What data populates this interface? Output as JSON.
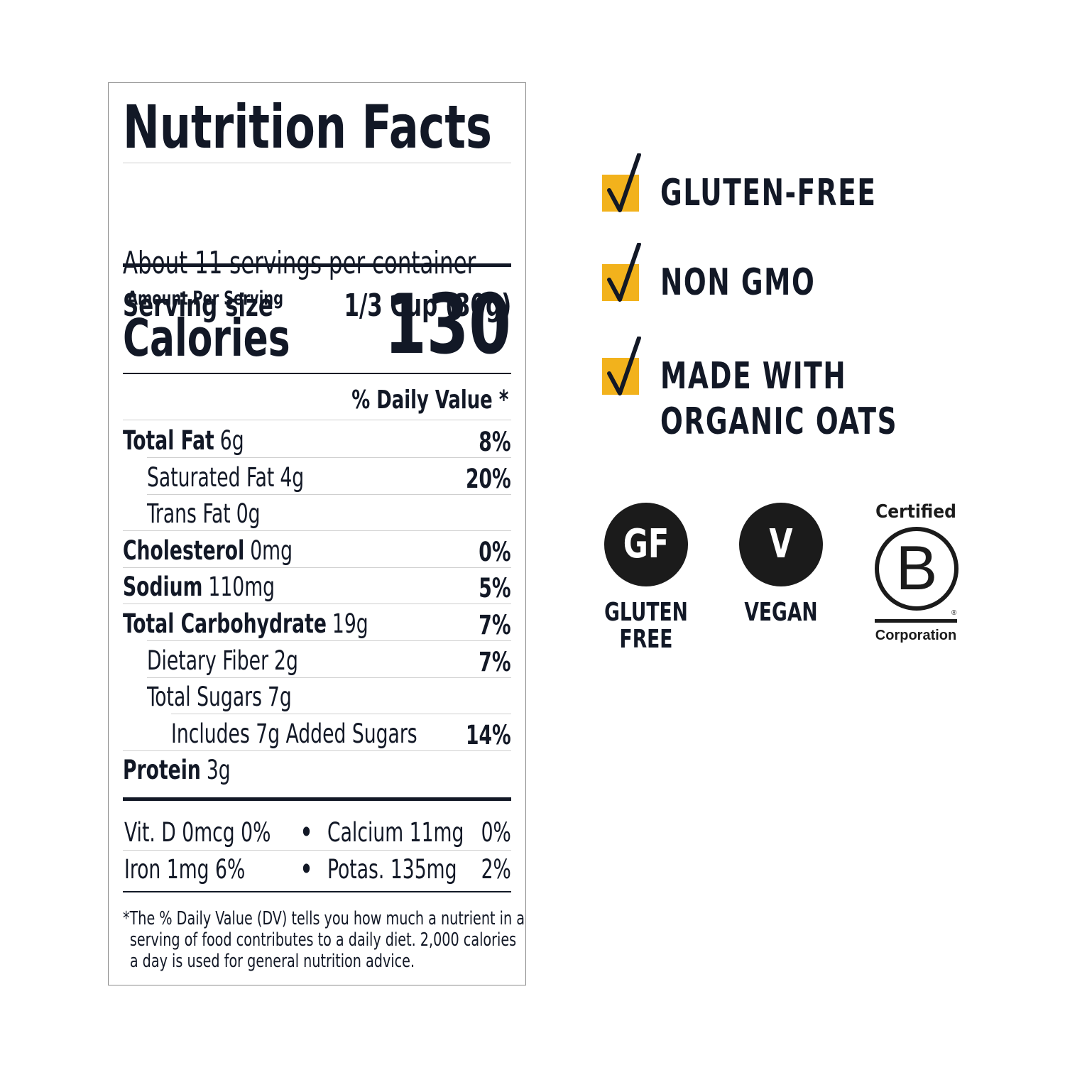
{
  "nutrition": {
    "title": "Nutrition Facts",
    "servings_per_container": "About 11 servings per container",
    "serving_size_label": "Serving size",
    "serving_size_value": "1/3 Cup (30g)",
    "amount_per_serving": "Amount Per Serving",
    "calories_label": "Calories",
    "calories_value": "130",
    "daily_value_header": "% Daily Value *",
    "rows": [
      {
        "label": "Total Fat",
        "amount": "6g",
        "dv": "8%"
      },
      {
        "label": "Saturated Fat",
        "amount": "4g",
        "dv": "20%"
      },
      {
        "label": "Trans Fat",
        "amount": "0g",
        "dv": ""
      },
      {
        "label": "Cholesterol",
        "amount": "0mg",
        "dv": "0%"
      },
      {
        "label": "Sodium",
        "amount": "110mg",
        "dv": "5%"
      },
      {
        "label": "Total Carbohydrate",
        "amount": "19g",
        "dv": "7%"
      },
      {
        "label": "Dietary Fiber",
        "amount": "2g",
        "dv": "7%"
      },
      {
        "label": "Total Sugars",
        "amount": "7g",
        "dv": ""
      },
      {
        "label": "Includes 7g Added Sugars",
        "amount": "",
        "dv": "14%"
      },
      {
        "label": "Protein",
        "amount": "3g",
        "dv": ""
      }
    ],
    "vitamins": [
      {
        "left": "Vit. D 0mcg 0%",
        "dot": "•",
        "right_name": "Calcium 11mg",
        "right_dv": "0%"
      },
      {
        "left": "Iron 1mg 6%",
        "dot": "•",
        "right_name": "Potas. 135mg",
        "right_dv": "2%"
      }
    ],
    "footnote": [
      "*The % Daily Value (DV) tells you how much a nutrient in a",
      "serving of food contributes to a daily diet. 2,000 calories",
      "a day is used for general nutrition advice."
    ]
  },
  "claims": [
    {
      "lines": [
        "GLUTEN-FREE"
      ]
    },
    {
      "lines": [
        "NON GMO"
      ]
    },
    {
      "lines": [
        "MADE WITH",
        "ORGANIC OATS"
      ]
    }
  ],
  "colors": {
    "accent": "#f2b21c",
    "ink": "#121826",
    "badge": "#1b1b1b"
  },
  "badges": {
    "gluten_free": {
      "symbol": "GF",
      "label_line1": "GLUTEN",
      "label_line2": "FREE"
    },
    "vegan": {
      "symbol": "V",
      "label": "VEGAN"
    },
    "bcorp": {
      "top": "Certified",
      "symbol": "B",
      "reg": "®",
      "bottom": "Corporation"
    }
  }
}
